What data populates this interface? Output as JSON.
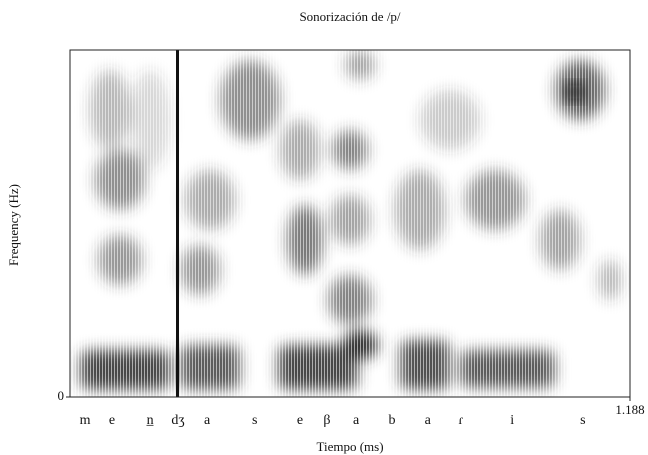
{
  "chart_data": {
    "type": "spectrogram",
    "title": "Sonorización de /p/",
    "x_label": "Tiempo (ms)",
    "y_label": "Frequency (Hz)",
    "xlim": [
      0,
      1.188
    ],
    "xticks": [
      {
        "value": 1.188,
        "label": "1.188"
      }
    ],
    "yticks": [
      0
    ],
    "segments": [
      {
        "label": "m",
        "time": 0.032
      },
      {
        "label": "e",
        "time": 0.089
      },
      {
        "label": "n̲",
        "time": 0.17
      },
      {
        "label": "dʒ",
        "time": 0.229
      },
      {
        "label": "a",
        "time": 0.291
      },
      {
        "label": "s",
        "time": 0.392
      },
      {
        "label": "e",
        "time": 0.488
      },
      {
        "label": "β",
        "time": 0.545
      },
      {
        "label": "a",
        "time": 0.607
      },
      {
        "label": "b",
        "time": 0.683
      },
      {
        "label": "a",
        "time": 0.759
      },
      {
        "label": "ɾ",
        "time": 0.829
      },
      {
        "label": "i",
        "time": 0.938
      },
      {
        "label": "s",
        "time": 1.088
      }
    ]
  }
}
